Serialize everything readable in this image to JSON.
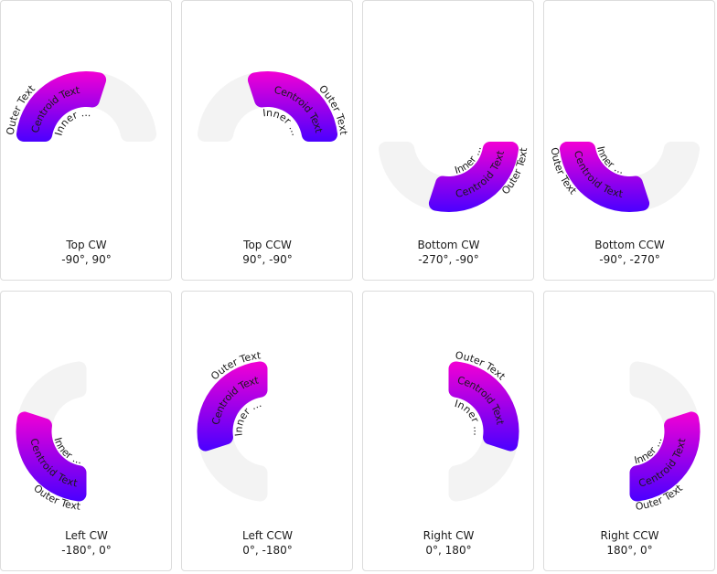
{
  "value_percent": 60,
  "colors": {
    "track": "#f3f3f3",
    "gradient_top": "#f200d4",
    "gradient_bottom": "#4a00ff",
    "text": "#1a1a1a"
  },
  "arc_texts": {
    "outer": "Outer Text",
    "centroid": "Centroid Text",
    "inner": "Inner ..."
  },
  "cards": [
    {
      "title": "Top CW",
      "range_label": "-90°, 90°",
      "start": -90,
      "end": 90
    },
    {
      "title": "Top CCW",
      "range_label": "90°, -90°",
      "start": 90,
      "end": -90
    },
    {
      "title": "Bottom CW",
      "range_label": "-270°, -90°",
      "start": -270,
      "end": -90
    },
    {
      "title": "Bottom CCW",
      "range_label": "-90°, -270°",
      "start": -90,
      "end": -270
    },
    {
      "title": "Left CW",
      "range_label": "-180°, 0°",
      "start": -180,
      "end": 0
    },
    {
      "title": "Left CCW",
      "range_label": "0°, -180°",
      "start": 0,
      "end": -180
    },
    {
      "title": "Right CW",
      "range_label": "0°, 180°",
      "start": 0,
      "end": 180
    },
    {
      "title": "Right CCW",
      "range_label": "180°, 0°",
      "start": 180,
      "end": 0
    }
  ]
}
